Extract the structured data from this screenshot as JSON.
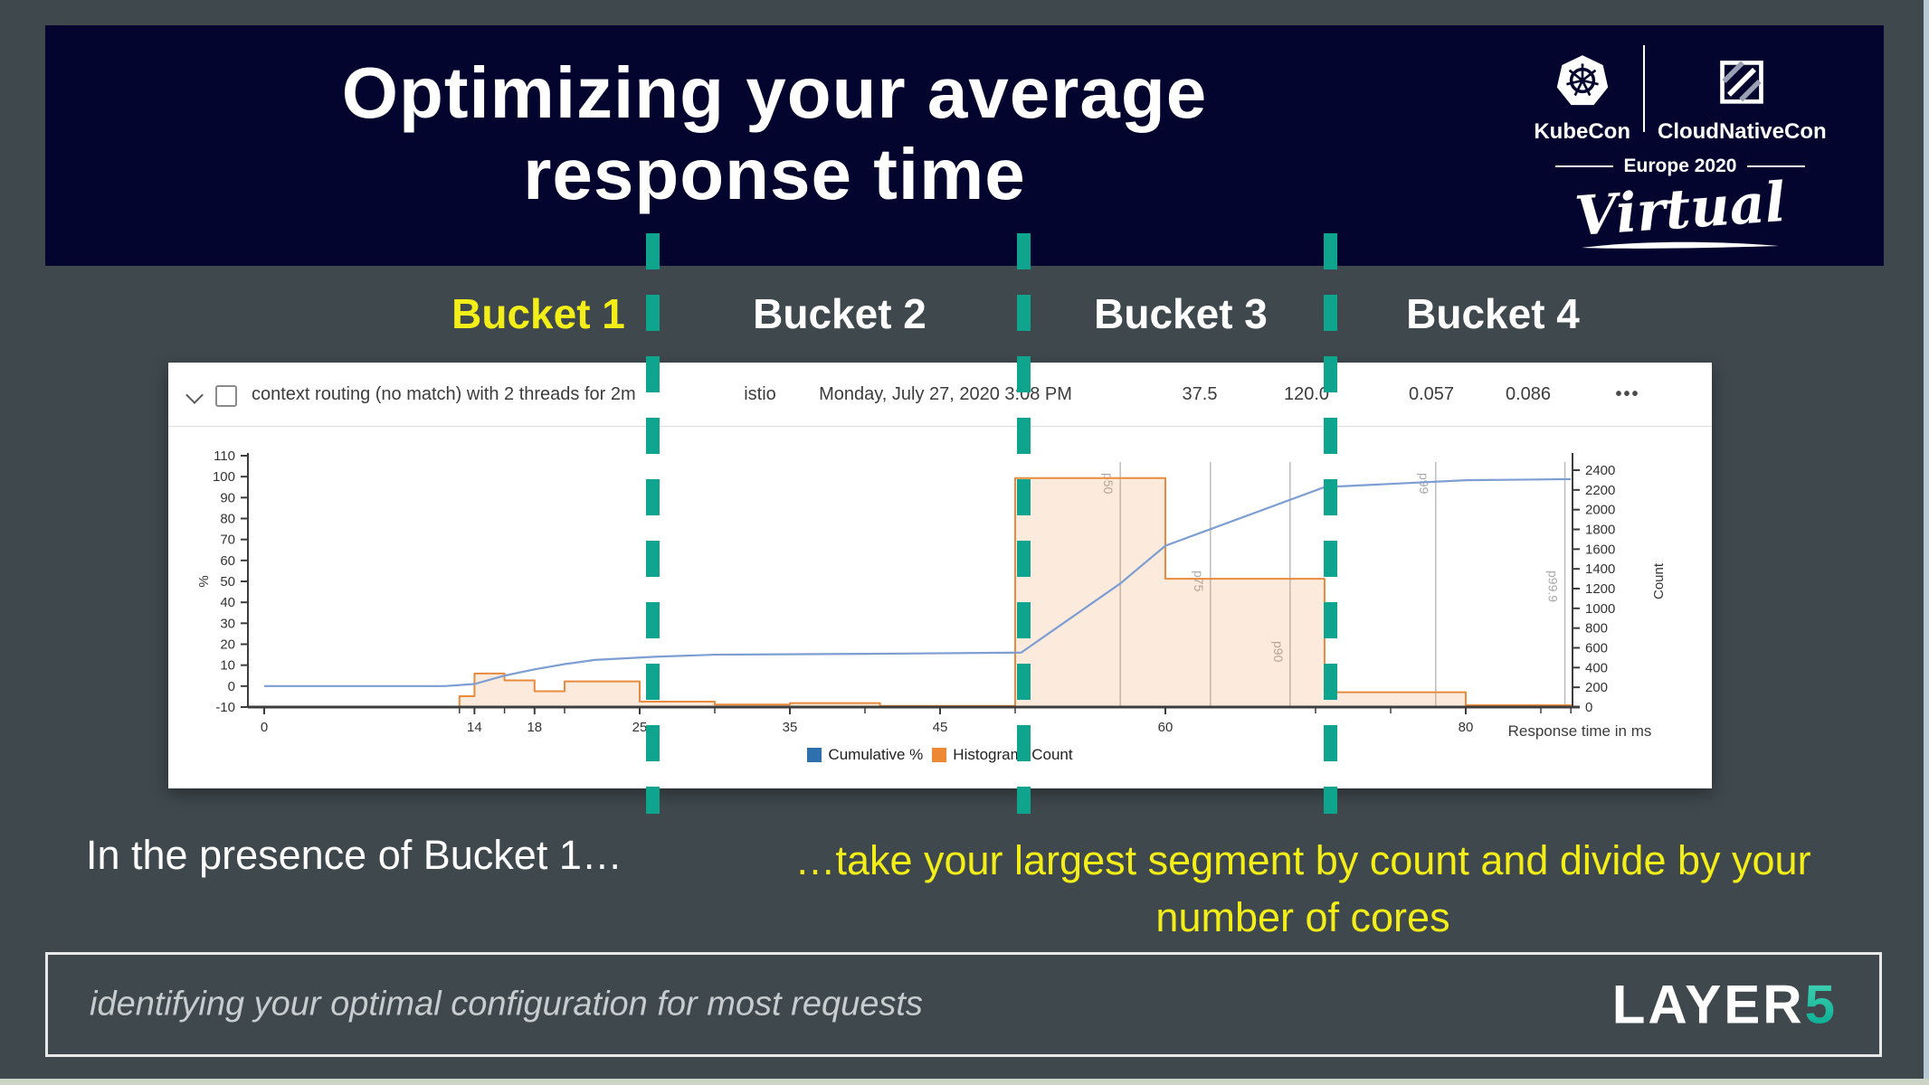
{
  "slide": {
    "title_line1": "Optimizing your average",
    "title_line2": "response time"
  },
  "event_badge": {
    "kubecon": "KubeCon",
    "cloudnativecon": "CloudNativeCon",
    "edition": "Europe 2020",
    "virtual": "Virtual"
  },
  "buckets": [
    {
      "label": "Bucket 1"
    },
    {
      "label": "Bucket 2"
    },
    {
      "label": "Bucket 3"
    },
    {
      "label": "Bucket 4"
    }
  ],
  "result_row": {
    "name": "context routing (no match) with 2 threads for 2m",
    "mesh": "istio",
    "timestamp": "Monday, July 27, 2020 3:08 PM",
    "metrics": [
      "37.5",
      "120.0",
      "0.057",
      "0.086"
    ],
    "more_icon": "•••"
  },
  "captions": {
    "left_white": "In the presence of Bucket 1…",
    "yellow_line1": "…take your largest segment by count and divide by your",
    "yellow_line2": "number of cores"
  },
  "footer": {
    "tagline": "identifying your optimal configuration for most requests",
    "brand_layer": "LAYER",
    "brand_5": "5"
  },
  "colors": {
    "background": "#3e484d",
    "banner_navy": "#04052e",
    "separator_teal": "#0fa48e",
    "highlight_yellow": "#f3ee18",
    "cumulative_line_blue": "#7d9ed2",
    "histogram_orange": "#e88b3c",
    "brand_teal": "#00b7a0"
  },
  "chart_data": {
    "type": "histogram+cumulative",
    "xlabel": "Response time in ms",
    "ylabel_left": "%",
    "ylabel_right": "Count",
    "xlim": [
      0,
      87
    ],
    "ylim_left": [
      -10,
      110
    ],
    "ylim_right": [
      0,
      2400
    ],
    "x_major_ticks": [
      0,
      14,
      18,
      25,
      35,
      45,
      60,
      80
    ],
    "x_minor_ticks": [
      13,
      16,
      20,
      30,
      40,
      50,
      70,
      75,
      85,
      87
    ],
    "y_left_ticks": [
      -10,
      0,
      10,
      20,
      30,
      40,
      50,
      60,
      70,
      80,
      90,
      100,
      110
    ],
    "y_right_ticks": [
      0,
      200,
      400,
      600,
      800,
      1000,
      1200,
      1400,
      1600,
      1800,
      2000,
      2200,
      2400
    ],
    "legend": [
      {
        "label": "Cumulative %",
        "color": "#2e6fad"
      },
      {
        "label": "Histogram: Count",
        "color": "#ed8936"
      }
    ],
    "percentiles": [
      {
        "label": "p50",
        "x": 57,
        "label_pos": "top"
      },
      {
        "label": "p75",
        "x": 63,
        "label_pos": "mid"
      },
      {
        "label": "p90",
        "x": 68.3,
        "label_pos": "low"
      },
      {
        "label": "p99",
        "x": 78,
        "label_pos": "top"
      },
      {
        "label": "p99.9",
        "x": 86.6,
        "label_pos": "mid"
      }
    ],
    "histogram_bins": [
      {
        "x0": 13,
        "x1": 14,
        "count": 110
      },
      {
        "x0": 14,
        "x1": 16,
        "count": 340
      },
      {
        "x0": 16,
        "x1": 18,
        "count": 270
      },
      {
        "x0": 18,
        "x1": 20,
        "count": 160
      },
      {
        "x0": 20,
        "x1": 25,
        "count": 260
      },
      {
        "x0": 25,
        "x1": 30,
        "count": 55
      },
      {
        "x0": 30,
        "x1": 35,
        "count": 25
      },
      {
        "x0": 35,
        "x1": 41,
        "count": 40
      },
      {
        "x0": 41,
        "x1": 50,
        "count": 12
      },
      {
        "x0": 50,
        "x1": 60,
        "count": 2320
      },
      {
        "x0": 60,
        "x1": 70.6,
        "count": 1300
      },
      {
        "x0": 70.6,
        "x1": 80,
        "count": 150
      },
      {
        "x0": 80,
        "x1": 87,
        "count": 18
      }
    ],
    "cumulative_pct_points": [
      [
        0,
        0
      ],
      [
        12,
        0
      ],
      [
        14,
        1
      ],
      [
        16,
        5
      ],
      [
        18,
        8
      ],
      [
        20,
        10.5
      ],
      [
        22,
        12.5
      ],
      [
        26,
        14
      ],
      [
        30,
        15
      ],
      [
        40,
        15.4
      ],
      [
        50.4,
        16
      ],
      [
        57,
        49
      ],
      [
        60,
        67
      ],
      [
        70.6,
        95
      ],
      [
        80,
        98.3
      ],
      [
        87,
        98.8
      ]
    ]
  }
}
